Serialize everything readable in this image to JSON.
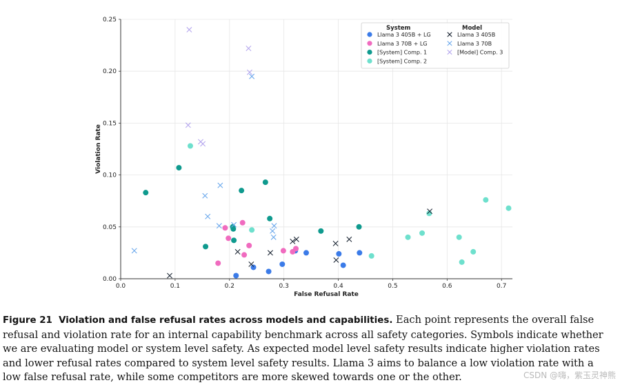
{
  "chart_data": {
    "type": "scatter",
    "xlabel": "False Refusal Rate",
    "ylabel": "Violation Rate",
    "xlim": [
      0.0,
      0.72
    ],
    "ylim": [
      0.0,
      0.25
    ],
    "xticks": [
      0.0,
      0.1,
      0.2,
      0.3,
      0.4,
      0.5,
      0.6,
      0.7
    ],
    "yticks": [
      0.0,
      0.05,
      0.1,
      0.15,
      0.2,
      0.25
    ],
    "xtick_labels": [
      "0.0",
      "0.1",
      "0.2",
      "0.3",
      "0.4",
      "0.5",
      "0.6",
      "0.7"
    ],
    "ytick_labels": [
      "0.00",
      "0.05",
      "0.10",
      "0.15",
      "0.20",
      "0.25"
    ],
    "grid": true,
    "legend": {
      "placement": "top-right",
      "system_title": "System",
      "model_title": "Model"
    },
    "series": [
      {
        "name": "Llama 3 405B + LG",
        "group": "system",
        "marker": "circle",
        "color": "#3b7be8",
        "points": [
          [
            0.212,
            0.003
          ],
          [
            0.244,
            0.011
          ],
          [
            0.272,
            0.007
          ],
          [
            0.297,
            0.014
          ],
          [
            0.321,
            0.027
          ],
          [
            0.341,
            0.025
          ],
          [
            0.401,
            0.024
          ],
          [
            0.409,
            0.013
          ],
          [
            0.439,
            0.025
          ]
        ]
      },
      {
        "name": "Llama 3 70B + LG",
        "group": "system",
        "marker": "circle",
        "color": "#f06bbf",
        "points": [
          [
            0.179,
            0.015
          ],
          [
            0.192,
            0.049
          ],
          [
            0.198,
            0.039
          ],
          [
            0.224,
            0.054
          ],
          [
            0.227,
            0.023
          ],
          [
            0.236,
            0.032
          ],
          [
            0.299,
            0.027
          ],
          [
            0.316,
            0.026
          ],
          [
            0.322,
            0.029
          ]
        ]
      },
      {
        "name": "[System] Comp. 1",
        "group": "system",
        "marker": "circle",
        "color": "#0f9a8e",
        "points": [
          [
            0.046,
            0.083
          ],
          [
            0.107,
            0.107
          ],
          [
            0.156,
            0.031
          ],
          [
            0.206,
            0.05
          ],
          [
            0.207,
            0.048
          ],
          [
            0.208,
            0.037
          ],
          [
            0.222,
            0.085
          ],
          [
            0.266,
            0.093
          ],
          [
            0.274,
            0.058
          ],
          [
            0.368,
            0.046
          ],
          [
            0.438,
            0.05
          ]
        ]
      },
      {
        "name": "[System] Comp. 2",
        "group": "system",
        "marker": "circle",
        "color": "#6ee0cd",
        "points": [
          [
            0.128,
            0.128
          ],
          [
            0.241,
            0.047
          ],
          [
            0.461,
            0.022
          ],
          [
            0.528,
            0.04
          ],
          [
            0.554,
            0.044
          ],
          [
            0.567,
            0.063
          ],
          [
            0.622,
            0.04
          ],
          [
            0.627,
            0.016
          ],
          [
            0.648,
            0.026
          ],
          [
            0.671,
            0.076
          ],
          [
            0.713,
            0.068
          ]
        ]
      },
      {
        "name": "Llama 3 405B",
        "group": "model",
        "marker": "x",
        "color": "#1f2937",
        "points": [
          [
            0.09,
            0.003
          ],
          [
            0.215,
            0.026
          ],
          [
            0.24,
            0.014
          ],
          [
            0.275,
            0.025
          ],
          [
            0.316,
            0.036
          ],
          [
            0.323,
            0.038
          ],
          [
            0.395,
            0.034
          ],
          [
            0.396,
            0.018
          ],
          [
            0.42,
            0.038
          ],
          [
            0.568,
            0.065
          ]
        ]
      },
      {
        "name": "Llama 3 70B",
        "group": "model",
        "marker": "x",
        "color": "#6aa8ec",
        "points": [
          [
            0.025,
            0.027
          ],
          [
            0.155,
            0.08
          ],
          [
            0.16,
            0.06
          ],
          [
            0.183,
            0.09
          ],
          [
            0.181,
            0.051
          ],
          [
            0.208,
            0.052
          ],
          [
            0.241,
            0.195
          ],
          [
            0.279,
            0.046
          ],
          [
            0.281,
            0.04
          ],
          [
            0.282,
            0.051
          ]
        ]
      },
      {
        "name": "[Model] Comp. 3",
        "group": "model",
        "marker": "x",
        "color": "#b6a8ee",
        "points": [
          [
            0.126,
            0.24
          ],
          [
            0.124,
            0.148
          ],
          [
            0.147,
            0.132
          ],
          [
            0.151,
            0.13
          ],
          [
            0.235,
            0.222
          ],
          [
            0.237,
            0.199
          ]
        ]
      }
    ]
  },
  "caption": {
    "label": "Figure 21",
    "title": "Violation and false refusal rates across models and capabilities.",
    "body": " Each point represents the overall false refusal and violation rate for an internal capability benchmark across all safety categories. Symbols indicate whether we are evaluating model or system level safety. As expected model level safety results indicate higher violation rates and lower refusal rates compared to system level safety results. Llama 3 aims to balance a low violation rate with a low false refusal rate, while some competitors are more skewed towards one or the other."
  },
  "watermark": "CSDN @嗨，紫玉灵神熊"
}
